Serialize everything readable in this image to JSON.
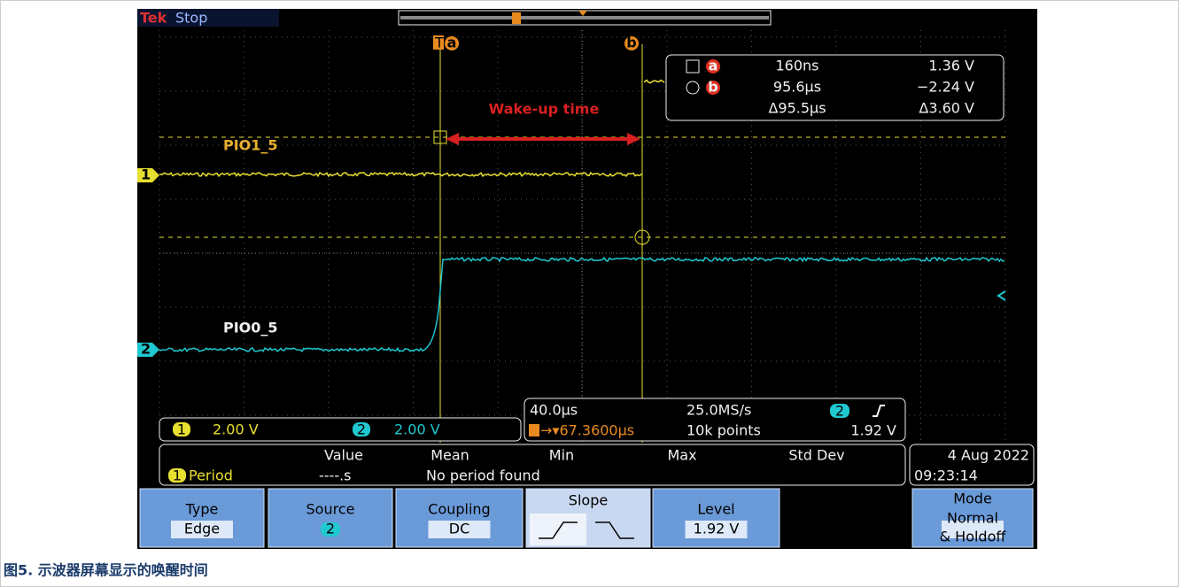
{
  "status": {
    "brand": "Tek",
    "state": "Stop"
  },
  "cursor_labels": {
    "a": "a",
    "b": "b",
    "trigger": "T"
  },
  "readout": {
    "rows": [
      [
        "a",
        "160ns",
        "1.36 V"
      ],
      [
        "b",
        "95.6µs",
        "−2.24 V"
      ],
      [
        "",
        "Δ95.5µs",
        "Δ3.60 V"
      ]
    ]
  },
  "annotation": "Wake-up time",
  "traces": [
    {
      "number": "1",
      "label": "PIO1_5",
      "scale": "2.00 V"
    },
    {
      "number": "2",
      "label": "PIO0_5",
      "scale": "2.00 V"
    }
  ],
  "timebase": {
    "horizontal": "40.0µs",
    "sample_rate": "25.0MS/s",
    "trigger_position": "→▾67.3600µs",
    "record": "10k points",
    "trigger_source": "2",
    "trigger_level": "1.92 V"
  },
  "measurement": {
    "headers": [
      "Value",
      "Mean",
      "Min",
      "Max",
      "Std Dev"
    ],
    "source": "1",
    "name": "Period",
    "value": "----.s",
    "message": "No period found"
  },
  "datetime": {
    "date": "4 Aug 2022",
    "time": "09:23:14"
  },
  "menu": [
    {
      "title": "Type",
      "value": "Edge"
    },
    {
      "title": "Source",
      "value": "2"
    },
    {
      "title": "Coupling",
      "value": "DC"
    },
    {
      "title": "Slope"
    },
    {
      "title": "Level",
      "value": "1.92 V"
    },
    {
      "title": "Mode",
      "value": "Normal",
      "extra": "& Holdoff"
    }
  ],
  "caption": "图5. 示波器屏幕显示的唤醒时间"
}
